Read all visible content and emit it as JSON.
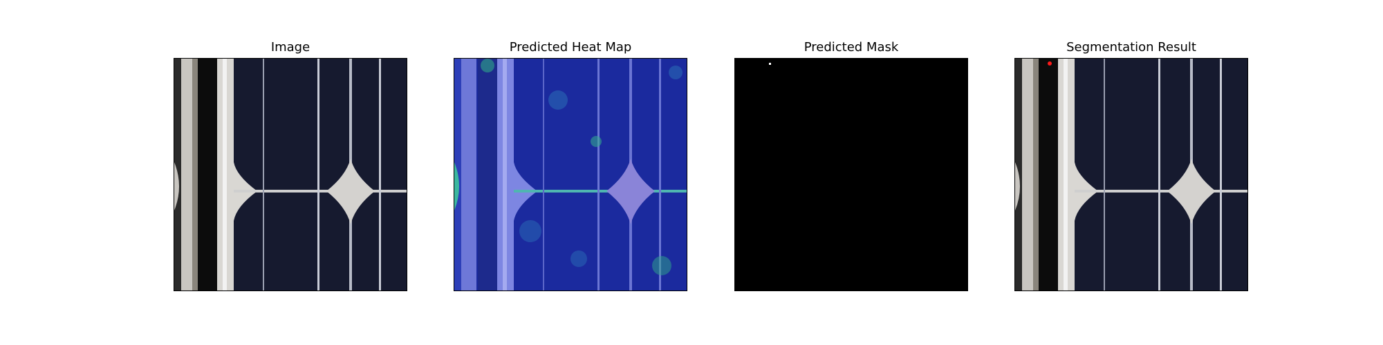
{
  "panels": [
    {
      "title": "Image",
      "icon": "solar-cell-photo"
    },
    {
      "title": "Predicted Heat Map",
      "icon": "heatmap-overlay"
    },
    {
      "title": "Predicted Mask",
      "icon": "binary-mask"
    },
    {
      "title": "Segmentation Result",
      "icon": "segmentation-overlay"
    }
  ],
  "colors": {
    "cell_dark": "#14182e",
    "frame_light": "#cfccc7",
    "busbar": "#e6e6e6",
    "heat_base": "#1a2aa6",
    "heat_hot": "#36c9a0",
    "mask_bg": "#000000",
    "mask_defect": "#ffffff",
    "defect_mark": "#ff1a1a"
  }
}
